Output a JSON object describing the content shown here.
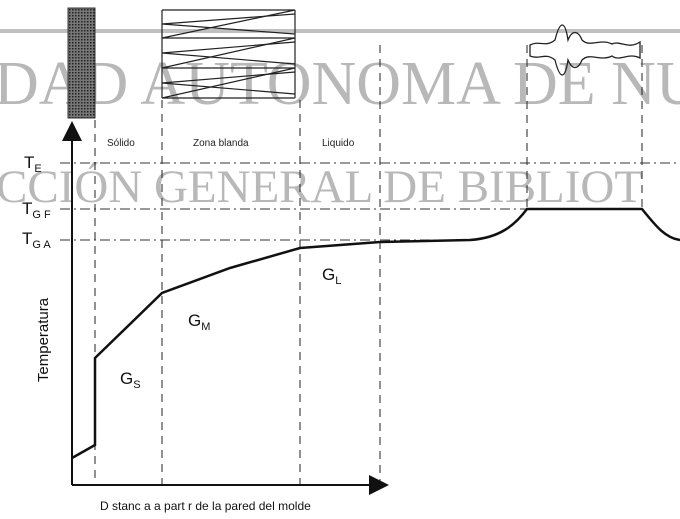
{
  "watermark": {
    "line1": "DAD AUTONOMA DE NU",
    "line2": "CCIÓN GENERAL DE BIBLIOT"
  },
  "zones": [
    "Sólido",
    "Zona blanda",
    "Liquido"
  ],
  "temperature_levels": [
    {
      "symbol": "T",
      "sub": "E"
    },
    {
      "symbol": "T",
      "sub": "G F"
    },
    {
      "symbol": "T",
      "sub": "G A"
    }
  ],
  "gradients": [
    {
      "symbol": "G",
      "sub": "L"
    },
    {
      "symbol": "G",
      "sub": "M"
    },
    {
      "symbol": "G",
      "sub": "S"
    }
  ],
  "y_axis_label": "Temperatura",
  "x_axis_label": "D stanc a a part r de la pared del molde"
}
